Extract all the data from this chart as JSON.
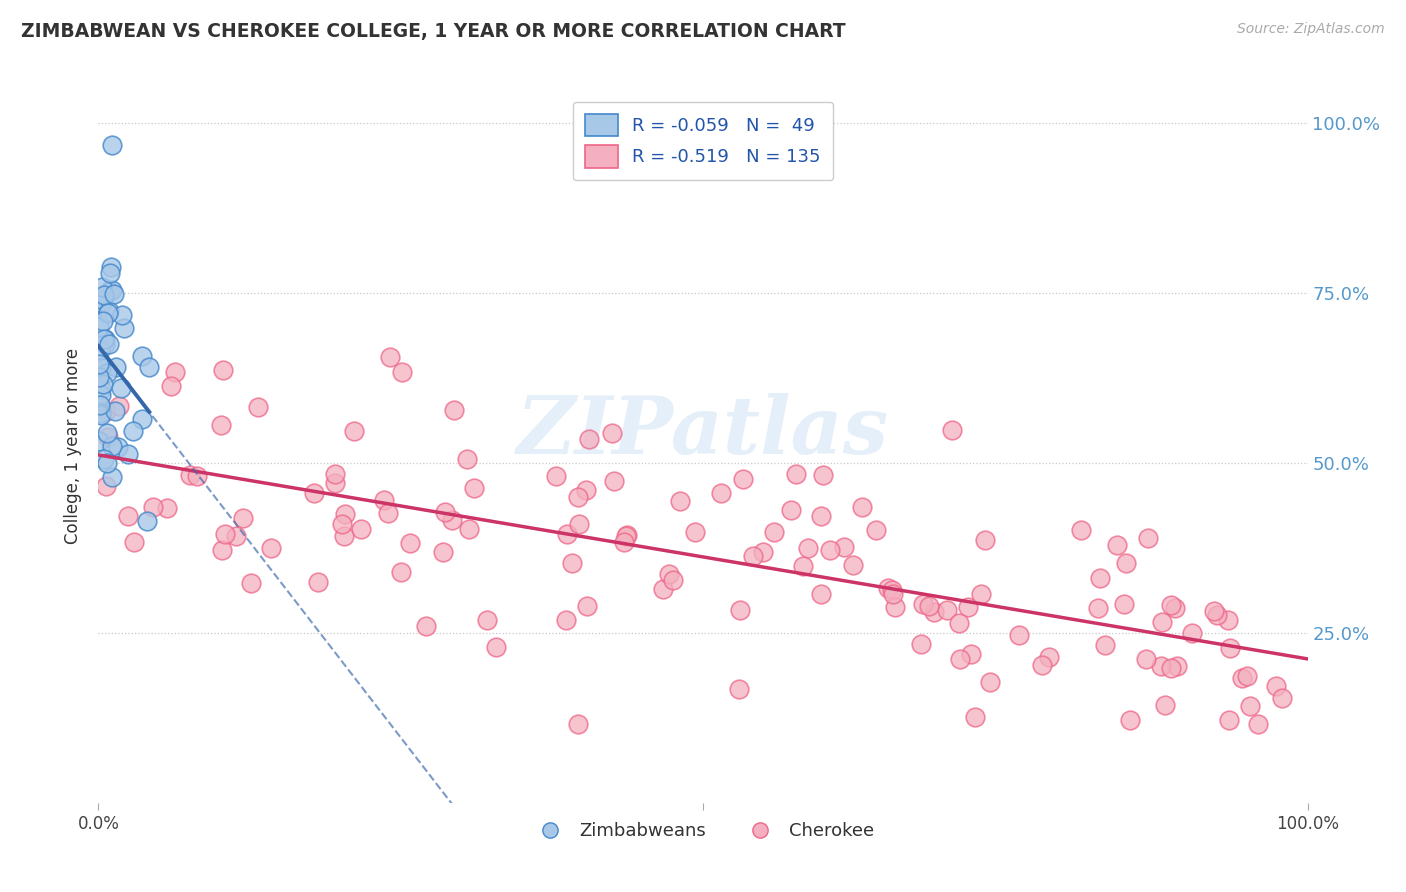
{
  "title": "ZIMBABWEAN VS CHEROKEE COLLEGE, 1 YEAR OR MORE CORRELATION CHART",
  "source": "Source: ZipAtlas.com",
  "ylabel": "College, 1 year or more",
  "ytick_labels": [
    "25.0%",
    "50.0%",
    "75.0%",
    "100.0%"
  ],
  "ytick_values": [
    0.25,
    0.5,
    0.75,
    1.0
  ],
  "legend_entry1": "R = -0.059   N =  49",
  "legend_entry2": "R = -0.519   N = 135",
  "blue_face": "#a8c8e8",
  "blue_edge": "#4488cc",
  "pink_face": "#f4b0c0",
  "pink_edge": "#ee6688",
  "line_blue": "#3366aa",
  "line_pink": "#cc3366",
  "background": "#ffffff",
  "grid_color": "#bbbbbb",
  "watermark": "ZIPatlas",
  "right_label_color": "#5599cc",
  "seed": 42,
  "N1": 49,
  "N2": 135
}
